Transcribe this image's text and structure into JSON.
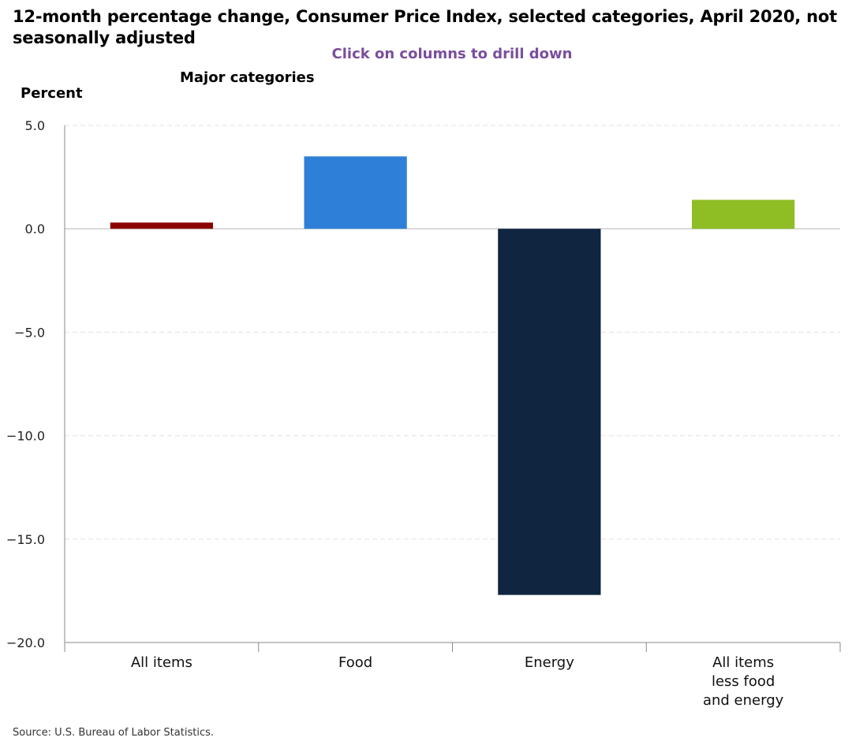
{
  "header": {
    "title": "12-month percentage change, Consumer Price Index, selected categories, April 2020, not seasonally adjusted",
    "drill_hint": "Click on columns to drill down",
    "subtitle": "Major categories"
  },
  "footer": {
    "source": "Source: U.S. Bureau of Labor Statistics."
  },
  "chart_data": {
    "type": "bar",
    "title": "12-month percentage change, Consumer Price Index, selected categories, April 2020, not seasonally adjusted",
    "subtitle": "Major categories",
    "ylabel": "Percent",
    "xlabel": "",
    "categories": [
      "All items",
      "Food",
      "Energy",
      "All items less food and energy"
    ],
    "category_lines": [
      [
        "All items"
      ],
      [
        "Food"
      ],
      [
        "Energy"
      ],
      [
        "All items",
        "less food",
        "and energy"
      ]
    ],
    "values": [
      0.3,
      3.5,
      -17.7,
      1.4
    ],
    "colors": [
      "#8b0000",
      "#2e7fd8",
      "#0f2540",
      "#8fbd24"
    ],
    "ylim": [
      -20,
      5
    ],
    "yticks": [
      5,
      0,
      -5,
      -10,
      -15,
      -20
    ],
    "ytick_labels": [
      "5.0",
      "0.0",
      "−5.0",
      "−10.0",
      "−15.0",
      "−20.0"
    ],
    "grid": true,
    "legend": "none"
  }
}
